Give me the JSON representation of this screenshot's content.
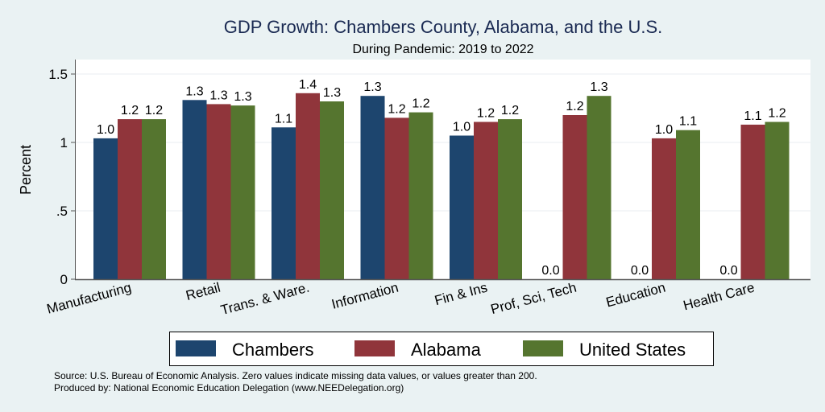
{
  "chart_data": {
    "type": "bar",
    "title": "GDP Growth: Chambers County, Alabama, and the U.S.",
    "subtitle": "During Pandemic: 2019 to 2022",
    "xlabel": "",
    "ylabel": "Percent",
    "ylim": [
      0,
      1.6
    ],
    "yticks": [
      0,
      0.5,
      1,
      1.5
    ],
    "ytick_labels": [
      "0",
      ".5",
      "1",
      "1.5"
    ],
    "grid": true,
    "categories": [
      "Manufacturing",
      "Retail",
      "Trans. & Ware.",
      "Information",
      "Fin & Ins",
      "Prof, Sci, Tech",
      "Education",
      "Health Care"
    ],
    "series": [
      {
        "name": "Chambers",
        "color": "#1d456e",
        "values": [
          1.03,
          1.31,
          1.11,
          1.34,
          1.05,
          0.0,
          0.0,
          0.0
        ],
        "labels": [
          "1.0",
          "1.3",
          "1.1",
          "1.3",
          "1.0",
          "0.0",
          "0.0",
          "0.0"
        ]
      },
      {
        "name": "Alabama",
        "color": "#90353b",
        "values": [
          1.17,
          1.28,
          1.36,
          1.18,
          1.15,
          1.2,
          1.03,
          1.13
        ],
        "labels": [
          "1.2",
          "1.3",
          "1.4",
          "1.2",
          "1.2",
          "1.2",
          "1.0",
          "1.1"
        ]
      },
      {
        "name": "United States",
        "color": "#55752f",
        "values": [
          1.17,
          1.27,
          1.3,
          1.22,
          1.17,
          1.34,
          1.09,
          1.15
        ],
        "labels": [
          "1.2",
          "1.3",
          "1.3",
          "1.2",
          "1.2",
          "1.3",
          "1.1",
          "1.2"
        ]
      }
    ],
    "legend_position": "bottom",
    "notes": [
      "Source: U.S. Bureau of Economic Analysis. Zero values indicate missing data values, or values greater than 200.",
      "Produced by: National Economic Education Delegation (www.NEEDelegation.org)"
    ]
  }
}
